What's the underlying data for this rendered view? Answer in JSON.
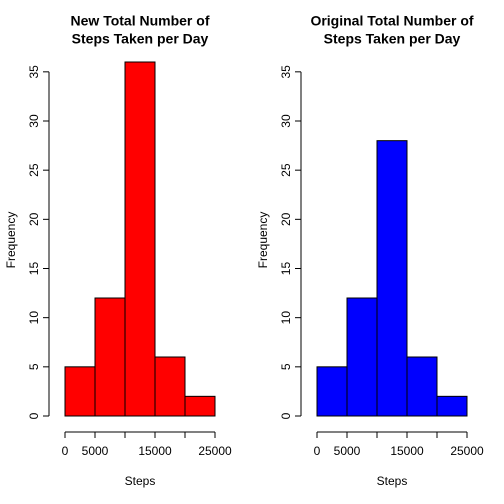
{
  "chart_data": [
    {
      "type": "histogram",
      "title": [
        "New Total Number of",
        "Steps Taken per Day"
      ],
      "xlabel": "Steps",
      "ylabel": "Frequency",
      "bins": [
        0,
        5000,
        10000,
        15000,
        20000,
        25000
      ],
      "values": [
        5,
        12,
        36,
        6,
        2
      ],
      "color": "#ff0000",
      "xlim": [
        0,
        25000
      ],
      "xticks": [
        0,
        5000,
        15000,
        25000
      ],
      "ylim": [
        0,
        36
      ],
      "yticks": [
        0,
        5,
        10,
        15,
        20,
        25,
        30,
        35
      ]
    },
    {
      "type": "histogram",
      "title": [
        "Original Total Number of",
        "Steps Taken per Day"
      ],
      "xlabel": "Steps",
      "ylabel": "Frequency",
      "bins": [
        0,
        5000,
        10000,
        15000,
        20000,
        25000
      ],
      "values": [
        5,
        12,
        28,
        6,
        2
      ],
      "color": "#0000ff",
      "xlim": [
        0,
        25000
      ],
      "xticks": [
        0,
        5000,
        15000,
        25000
      ],
      "ylim": [
        0,
        36
      ],
      "yticks": [
        0,
        5,
        10,
        15,
        20,
        25,
        30,
        35
      ]
    }
  ]
}
